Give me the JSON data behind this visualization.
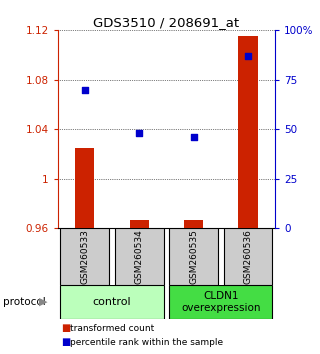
{
  "title": "GDS3510 / 208691_at",
  "samples": [
    "GSM260533",
    "GSM260534",
    "GSM260535",
    "GSM260536"
  ],
  "bar_values": [
    1.025,
    0.967,
    0.967,
    1.115
  ],
  "bar_bottom": 0.96,
  "percentile_values": [
    70,
    48,
    46,
    87
  ],
  "bar_color": "#cc2200",
  "dot_color": "#0000cc",
  "ylim_left": [
    0.96,
    1.12
  ],
  "ylim_right": [
    0,
    100
  ],
  "yticks_left": [
    0.96,
    1.0,
    1.04,
    1.08,
    1.12
  ],
  "ytick_labels_left": [
    "0.96",
    "1",
    "1.04",
    "1.08",
    "1.12"
  ],
  "yticks_right": [
    0,
    25,
    50,
    75,
    100
  ],
  "ytick_labels_right": [
    "0",
    "25",
    "50",
    "75",
    "100%"
  ],
  "group1_label": "control",
  "group2_label": "CLDN1\noverexpression",
  "group1_indices": [
    0,
    1
  ],
  "group2_indices": [
    2,
    3
  ],
  "group1_color": "#bbffbb",
  "group2_color": "#44dd44",
  "sample_box_color": "#cccccc",
  "protocol_label": "protocol",
  "legend_bar_label": "transformed count",
  "legend_dot_label": "percentile rank within the sample",
  "bar_width": 0.35,
  "fig_width": 3.2,
  "fig_height": 3.54,
  "dpi": 100
}
